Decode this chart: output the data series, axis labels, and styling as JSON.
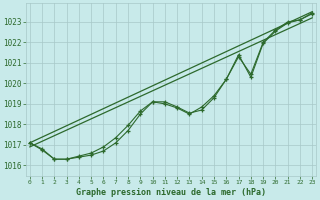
{
  "background_color": "#c8eaea",
  "grid_color": "#a8c8c8",
  "line_color": "#2d6a2d",
  "text_color": "#2d6a2d",
  "xlabel": "Graphe pression niveau de la mer (hPa)",
  "ylim": [
    1015.5,
    1023.9
  ],
  "xlim": [
    -0.3,
    23.3
  ],
  "yticks": [
    1016,
    1017,
    1018,
    1019,
    1020,
    1021,
    1022,
    1023
  ],
  "xticks": [
    0,
    1,
    2,
    3,
    4,
    5,
    6,
    7,
    8,
    9,
    10,
    11,
    12,
    13,
    14,
    15,
    16,
    17,
    18,
    19,
    20,
    21,
    22,
    23
  ],
  "series": [
    {
      "x": [
        0,
        23
      ],
      "y": [
        1017.1,
        1023.5
      ]
    },
    {
      "x": [
        0,
        23
      ],
      "y": [
        1016.9,
        1023.2
      ]
    },
    {
      "x": [
        0,
        1,
        2,
        3,
        4,
        5,
        6,
        7,
        8,
        9,
        10,
        11,
        12,
        13,
        14,
        15,
        16,
        17,
        18,
        19,
        20,
        21,
        22,
        23
      ],
      "y": [
        1017.1,
        1016.8,
        1016.3,
        1016.3,
        1016.4,
        1016.5,
        1016.7,
        1017.1,
        1017.7,
        1018.5,
        1019.1,
        1019.1,
        1018.85,
        1018.55,
        1018.7,
        1019.3,
        1020.2,
        1021.4,
        1020.3,
        1021.95,
        1022.55,
        1022.95,
        1023.1,
        1023.4
      ]
    },
    {
      "x": [
        0,
        1,
        2,
        3,
        4,
        5,
        6,
        7,
        8,
        9,
        10,
        11,
        12,
        13,
        14,
        15,
        16,
        17,
        18,
        19,
        20,
        21,
        22,
        23
      ],
      "y": [
        1017.1,
        1016.75,
        1016.3,
        1016.3,
        1016.45,
        1016.6,
        1016.9,
        1017.35,
        1017.95,
        1018.65,
        1019.1,
        1019.0,
        1018.8,
        1018.5,
        1018.85,
        1019.4,
        1020.2,
        1021.3,
        1020.45,
        1022.0,
        1022.6,
        1023.0,
        1023.1,
        1023.45
      ]
    }
  ],
  "figsize": [
    3.2,
    2.0
  ],
  "dpi": 100
}
